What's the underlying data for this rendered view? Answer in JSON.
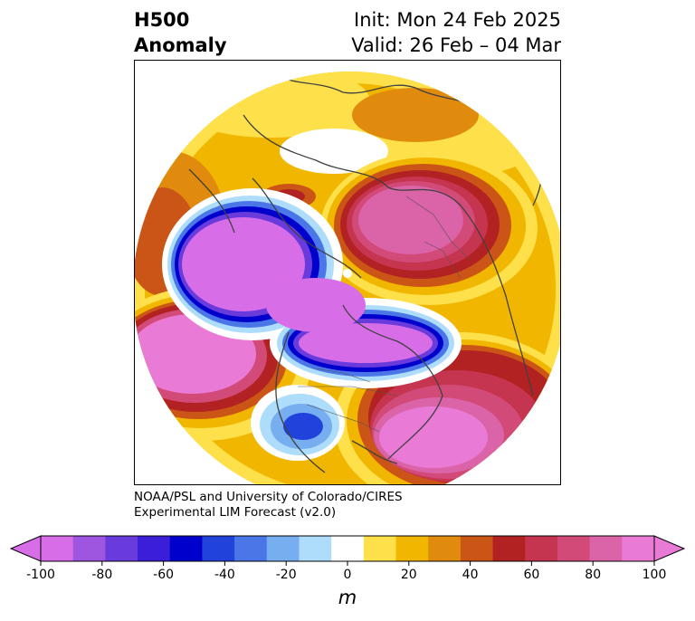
{
  "title": {
    "variable": "H500",
    "field": "Anomaly",
    "init": "Init: Mon 24 Feb 2025",
    "valid": "Valid: 26 Feb – 04 Mar"
  },
  "credit": {
    "line1": "NOAA/PSL and University of Colorado/CIRES",
    "line2": "Experimental LIM Forecast (v2.0)"
  },
  "colorbar": {
    "unit": "m",
    "tick_labels": [
      "-100",
      "-80",
      "-60",
      "-40",
      "-20",
      "0",
      "20",
      "40",
      "60",
      "80",
      "100"
    ],
    "levels": [
      -100,
      -90,
      -80,
      -70,
      -60,
      -50,
      -40,
      -30,
      -20,
      -10,
      10,
      20,
      30,
      40,
      50,
      60,
      70,
      80,
      90,
      100
    ],
    "colors": [
      "#d86de8",
      "#9e55e0",
      "#6a3bdc",
      "#3a1ed8",
      "#0000cd",
      "#2242dc",
      "#4a76e8",
      "#76aef0",
      "#aeddfb",
      "#ffffff",
      "#fde04a",
      "#f1b600",
      "#e08b0e",
      "#cb5516",
      "#b22222",
      "#c53550",
      "#d24a78",
      "#db63a8",
      "#e97bd6"
    ],
    "under_color": "#d86de8",
    "over_color": "#e97bd6"
  },
  "map": {
    "projection": "north-polar-stereographic",
    "anomaly_centers": [
      {
        "region": "North Pacific / Alaska",
        "value_m": -100
      },
      {
        "region": "Arctic / Canada",
        "value_m": -100
      },
      {
        "region": "Southwestern US",
        "value_m": -50
      },
      {
        "region": "Northeast Pacific",
        "value_m": 100
      },
      {
        "region": "Eastern US / Western Atlantic",
        "value_m": 100
      },
      {
        "region": "Northern Europe / Scandinavia",
        "value_m": 100
      },
      {
        "region": "Central Asia",
        "value_m": 40
      }
    ]
  }
}
